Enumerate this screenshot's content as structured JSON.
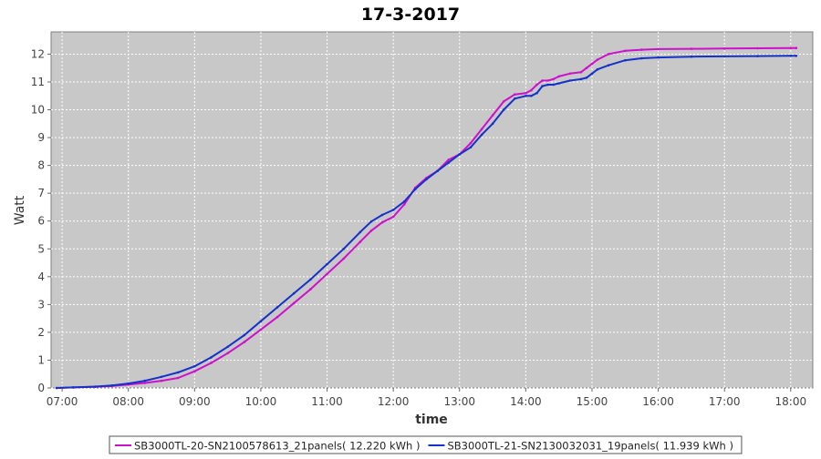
{
  "chart_data": {
    "type": "line",
    "title": "17-3-2017",
    "xlabel": "time",
    "ylabel": "Watt",
    "x_ticks": [
      "07:00",
      "08:00",
      "09:00",
      "10:00",
      "11:00",
      "12:00",
      "13:00",
      "14:00",
      "15:00",
      "16:00",
      "17:00",
      "18:00"
    ],
    "y_ticks": [
      "0",
      "1",
      "2",
      "3",
      "4",
      "5",
      "6",
      "7",
      "8",
      "9",
      "10",
      "11",
      "12"
    ],
    "xlim": [
      "06:50",
      "18:20"
    ],
    "ylim": [
      0,
      12.8
    ],
    "grid": true,
    "legend_position": "bottom",
    "background": "#c8c8c8",
    "series": [
      {
        "name": "SB3000TL-20-SN2100578613_21panels( 12.220 kWh )",
        "color": "#cc10cc",
        "x": [
          "06:55",
          "07:10",
          "07:30",
          "07:45",
          "08:00",
          "08:15",
          "08:30",
          "08:45",
          "09:00",
          "09:15",
          "09:30",
          "09:45",
          "10:00",
          "10:15",
          "10:30",
          "10:45",
          "11:00",
          "11:15",
          "11:30",
          "11:40",
          "11:50",
          "12:00",
          "12:10",
          "12:20",
          "12:30",
          "12:40",
          "12:50",
          "13:00",
          "13:10",
          "13:20",
          "13:30",
          "13:40",
          "13:50",
          "14:00",
          "14:05",
          "14:10",
          "14:15",
          "14:20",
          "14:25",
          "14:30",
          "14:40",
          "14:50",
          "14:55",
          "15:00",
          "15:05",
          "15:15",
          "15:30",
          "15:45",
          "16:00",
          "16:30",
          "17:00",
          "17:30",
          "18:00",
          "18:05"
        ],
        "y": [
          0.0,
          0.02,
          0.04,
          0.07,
          0.12,
          0.18,
          0.26,
          0.36,
          0.6,
          0.9,
          1.25,
          1.65,
          2.1,
          2.55,
          3.05,
          3.55,
          4.1,
          4.65,
          5.25,
          5.65,
          5.95,
          6.15,
          6.6,
          7.2,
          7.55,
          7.8,
          8.2,
          8.4,
          8.8,
          9.3,
          9.8,
          10.3,
          10.55,
          10.6,
          10.7,
          10.9,
          11.05,
          11.05,
          11.1,
          11.2,
          11.3,
          11.35,
          11.5,
          11.65,
          11.8,
          12.0,
          12.12,
          12.16,
          12.18,
          12.19,
          12.2,
          12.21,
          12.22,
          12.22
        ]
      },
      {
        "name": "SB3000TL-21-SN2130032031_19panels( 11.939 kWh )",
        "color": "#1432c8",
        "x": [
          "06:55",
          "07:10",
          "07:30",
          "07:45",
          "08:00",
          "08:15",
          "08:30",
          "08:45",
          "09:00",
          "09:15",
          "09:30",
          "09:45",
          "10:00",
          "10:15",
          "10:30",
          "10:45",
          "11:00",
          "11:15",
          "11:30",
          "11:40",
          "11:50",
          "12:00",
          "12:10",
          "12:20",
          "12:30",
          "12:40",
          "12:50",
          "13:00",
          "13:10",
          "13:20",
          "13:30",
          "13:40",
          "13:50",
          "14:00",
          "14:05",
          "14:10",
          "14:15",
          "14:20",
          "14:25",
          "14:30",
          "14:40",
          "14:50",
          "14:55",
          "15:00",
          "15:05",
          "15:15",
          "15:30",
          "15:45",
          "16:00",
          "16:30",
          "17:00",
          "17:30",
          "18:00",
          "18:05"
        ],
        "y": [
          0.0,
          0.02,
          0.05,
          0.09,
          0.16,
          0.26,
          0.4,
          0.56,
          0.78,
          1.1,
          1.48,
          1.9,
          2.4,
          2.9,
          3.4,
          3.9,
          4.45,
          5.0,
          5.6,
          5.98,
          6.22,
          6.4,
          6.7,
          7.15,
          7.5,
          7.8,
          8.1,
          8.4,
          8.65,
          9.1,
          9.5,
          10.0,
          10.4,
          10.5,
          10.5,
          10.6,
          10.85,
          10.9,
          10.9,
          10.95,
          11.05,
          11.1,
          11.15,
          11.3,
          11.45,
          11.6,
          11.78,
          11.85,
          11.88,
          11.91,
          11.92,
          11.93,
          11.94,
          11.94
        ]
      }
    ]
  }
}
